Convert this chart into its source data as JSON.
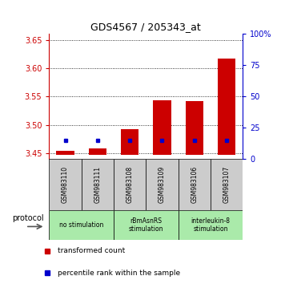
{
  "title": "GDS4567 / 205343_at",
  "samples": [
    "GSM983110",
    "GSM983111",
    "GSM983108",
    "GSM983109",
    "GSM983106",
    "GSM983107"
  ],
  "transformed_count_bottom": [
    3.447,
    3.447,
    3.447,
    3.447,
    3.447,
    3.447
  ],
  "transformed_count_top": [
    3.455,
    3.459,
    3.493,
    3.543,
    3.542,
    3.617
  ],
  "blue_marker_pct": [
    15,
    15,
    15,
    15,
    15,
    15
  ],
  "group_spans": [
    [
      0,
      1,
      "no stimulation",
      "#aaeaaa"
    ],
    [
      2,
      3,
      "rBmAsnRS\nstimulation",
      "#aaeaaa"
    ],
    [
      4,
      5,
      "interleukin-8\nstimulation",
      "#aaeaaa"
    ]
  ],
  "ylim_left": [
    3.44,
    3.66
  ],
  "ylim_right": [
    0,
    100
  ],
  "yticks_left": [
    3.45,
    3.5,
    3.55,
    3.6,
    3.65
  ],
  "yticks_right": [
    0,
    25,
    50,
    75,
    100
  ],
  "bar_color": "#cc0000",
  "dot_color": "#0000cc",
  "background_sample": "#cccccc",
  "legend_items": [
    "transformed count",
    "percentile rank within the sample"
  ],
  "protocol_label": "protocol"
}
